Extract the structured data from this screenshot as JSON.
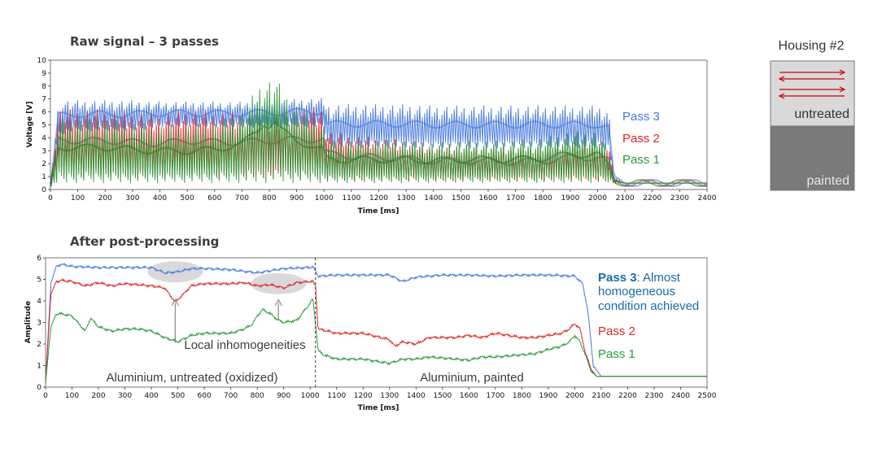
{
  "colors": {
    "pass1": "#2a9a3a",
    "pass2": "#e02525",
    "pass3": "#4477dd",
    "pass1_dark": "#1f7a1f",
    "pass2_dark": "#b0204a",
    "pass3_text": "#1a6aaa",
    "untreated_fill": "#d9d9d9",
    "painted_fill": "#7a7a7a",
    "arrow_color": "#cc0000"
  },
  "housing": {
    "title": "Housing #2",
    "untreated_label": "untreated",
    "painted_label": "painted"
  },
  "chart_data": [
    {
      "type": "line",
      "title": "Raw signal – 3 passes",
      "xlabel": "Time [ms]",
      "ylabel": "Voltage [V]",
      "xlim": [
        0,
        2400
      ],
      "ylim": [
        0,
        10
      ],
      "xticks": [
        0,
        100,
        200,
        300,
        400,
        500,
        600,
        700,
        800,
        900,
        1000,
        1100,
        1200,
        1300,
        1400,
        1500,
        1600,
        1700,
        1800,
        1900,
        2000,
        2100,
        2200,
        2300,
        2400
      ],
      "yticks": [
        0,
        1,
        2,
        3,
        4,
        5,
        6,
        7,
        8,
        9,
        10
      ],
      "legend": [
        "Pass 3",
        "Pass 2",
        "Pass 1"
      ],
      "series": [
        {
          "name": "Pass 3",
          "x": [
            0,
            30,
            100,
            200,
            300,
            400,
            500,
            600,
            700,
            800,
            900,
            1000,
            1010,
            1100,
            1200,
            1300,
            1400,
            1500,
            1600,
            1700,
            1800,
            1900,
            2000,
            2040,
            2060,
            2100,
            2400
          ],
          "env_high": [
            0.2,
            6.9,
            6.9,
            6.9,
            6.9,
            6.8,
            6.8,
            6.8,
            6.8,
            6.9,
            7.0,
            7.1,
            6.6,
            6.6,
            6.6,
            6.6,
            6.5,
            6.5,
            6.5,
            6.5,
            6.5,
            6.5,
            6.5,
            6.3,
            1.0,
            0.5,
            0.5
          ],
          "env_low": [
            0.2,
            4.2,
            4.5,
            4.5,
            4.5,
            4.8,
            4.8,
            4.8,
            4.8,
            4.8,
            4.8,
            4.8,
            3.2,
            3.2,
            3.2,
            3.2,
            3.2,
            3.2,
            3.2,
            3.2,
            3.2,
            3.2,
            3.2,
            3.0,
            0.5,
            0.5,
            0.5
          ]
        },
        {
          "name": "Pass 2",
          "x": [
            0,
            30,
            100,
            200,
            300,
            400,
            500,
            600,
            700,
            800,
            900,
            1000,
            1010,
            1100,
            1200,
            1300,
            1400,
            1500,
            1600,
            1700,
            1800,
            1900,
            2000,
            2040,
            2060,
            2100,
            2400
          ],
          "env_high": [
            0.2,
            6.2,
            6.2,
            6.2,
            6.0,
            5.8,
            6.2,
            6.0,
            6.0,
            6.2,
            6.4,
            6.4,
            4.5,
            4.2,
            4.0,
            3.8,
            3.5,
            3.5,
            3.5,
            3.4,
            3.5,
            4.0,
            4.0,
            3.6,
            0.8,
            0.5,
            0.5
          ],
          "env_low": [
            0.2,
            1.0,
            0.8,
            0.8,
            0.8,
            0.8,
            0.8,
            0.8,
            0.8,
            0.8,
            0.8,
            0.8,
            0.6,
            0.6,
            0.6,
            0.6,
            0.6,
            0.6,
            0.6,
            0.6,
            0.6,
            0.6,
            0.6,
            0.5,
            0.5,
            0.5,
            0.5
          ]
        },
        {
          "name": "Pass 1",
          "x": [
            0,
            30,
            100,
            200,
            300,
            400,
            500,
            600,
            700,
            760,
            780,
            800,
            820,
            840,
            900,
            1000,
            1010,
            1100,
            1200,
            1300,
            1400,
            1500,
            1600,
            1700,
            1800,
            1900,
            2000,
            2040,
            2060,
            2100,
            2400
          ],
          "env_high": [
            0.2,
            5.5,
            5.5,
            5.5,
            5.2,
            5.0,
            5.0,
            5.2,
            6.0,
            8.0,
            9.0,
            8.5,
            9.2,
            8.0,
            6.5,
            5.0,
            3.8,
            3.8,
            3.8,
            3.8,
            3.6,
            3.8,
            3.8,
            3.8,
            4.0,
            4.5,
            4.5,
            3.0,
            0.8,
            0.5,
            0.5
          ],
          "env_low": [
            0.2,
            0.5,
            0.5,
            0.5,
            0.5,
            0.5,
            0.5,
            0.5,
            0.5,
            0.5,
            0.5,
            0.5,
            0.5,
            0.5,
            0.5,
            0.5,
            0.5,
            0.5,
            0.5,
            0.5,
            0.5,
            0.5,
            0.5,
            0.5,
            0.5,
            0.5,
            0.5,
            0.5,
            0.5,
            0.5,
            0.5
          ]
        }
      ]
    },
    {
      "type": "line",
      "title": "After post-processing",
      "xlabel": "Time [ms]",
      "ylabel": "Amplitude",
      "xlim": [
        0,
        2500
      ],
      "ylim": [
        0,
        6
      ],
      "xticks": [
        0,
        100,
        200,
        300,
        400,
        500,
        600,
        700,
        800,
        900,
        1000,
        1100,
        1200,
        1300,
        1400,
        1500,
        1600,
        1700,
        1800,
        1900,
        2000,
        2100,
        2200,
        2300,
        2400,
        2500
      ],
      "yticks": [
        0,
        1,
        2,
        3,
        4,
        5,
        6
      ],
      "divider_x": 1020,
      "series": [
        {
          "name": "Pass 3",
          "x": [
            0,
            20,
            40,
            60,
            100,
            200,
            300,
            400,
            450,
            500,
            550,
            600,
            700,
            800,
            900,
            1000,
            1010,
            1030,
            1100,
            1200,
            1300,
            1350,
            1400,
            1500,
            1600,
            1700,
            1800,
            1900,
            2000,
            2030,
            2050,
            2070,
            2100,
            2500
          ],
          "y": [
            0.2,
            4.8,
            5.6,
            5.7,
            5.6,
            5.55,
            5.55,
            5.55,
            5.3,
            5.35,
            5.5,
            5.5,
            5.45,
            5.3,
            5.5,
            5.55,
            5.6,
            5.15,
            5.2,
            5.2,
            5.2,
            4.9,
            5.1,
            5.2,
            5.2,
            5.15,
            5.2,
            5.2,
            5.15,
            4.8,
            3.5,
            1.0,
            0.5,
            0.5
          ]
        },
        {
          "name": "Pass 2",
          "x": [
            0,
            20,
            40,
            60,
            100,
            150,
            200,
            250,
            300,
            350,
            400,
            450,
            490,
            520,
            550,
            600,
            650,
            700,
            750,
            800,
            850,
            900,
            950,
            1000,
            1010,
            1020,
            1030,
            1100,
            1200,
            1300,
            1320,
            1350,
            1400,
            1450,
            1500,
            1550,
            1600,
            1650,
            1700,
            1750,
            1800,
            1850,
            1900,
            1950,
            1980,
            2000,
            2020,
            2040,
            2060,
            2080,
            2100,
            2500
          ],
          "y": [
            0.2,
            4.3,
            4.9,
            4.95,
            4.9,
            4.7,
            4.85,
            4.7,
            4.8,
            4.75,
            4.7,
            4.6,
            3.95,
            4.3,
            4.7,
            4.8,
            4.8,
            4.8,
            4.85,
            4.7,
            4.75,
            4.6,
            4.85,
            4.9,
            4.9,
            4.7,
            2.7,
            2.5,
            2.5,
            2.2,
            1.9,
            2.1,
            2.0,
            2.3,
            2.3,
            2.3,
            2.4,
            2.3,
            2.5,
            2.4,
            2.3,
            2.3,
            2.4,
            2.5,
            2.7,
            2.95,
            2.7,
            1.6,
            0.9,
            0.5,
            0.5,
            0.5
          ]
        },
        {
          "name": "Pass 1",
          "x": [
            0,
            20,
            40,
            60,
            100,
            150,
            170,
            200,
            250,
            300,
            350,
            400,
            450,
            500,
            550,
            600,
            650,
            700,
            750,
            780,
            800,
            820,
            850,
            880,
            900,
            950,
            1000,
            1010,
            1020,
            1030,
            1050,
            1100,
            1200,
            1250,
            1300,
            1350,
            1400,
            1450,
            1500,
            1550,
            1600,
            1650,
            1700,
            1750,
            1800,
            1850,
            1900,
            1950,
            1980,
            2000,
            2020,
            2040,
            2060,
            2080,
            2100,
            2500
          ],
          "y": [
            0.2,
            2.8,
            3.4,
            3.4,
            3.3,
            2.6,
            3.2,
            2.8,
            2.6,
            2.7,
            2.7,
            2.6,
            2.3,
            2.1,
            2.4,
            2.5,
            2.5,
            2.5,
            2.7,
            2.9,
            3.3,
            3.6,
            3.4,
            3.1,
            3.0,
            3.1,
            3.9,
            4.1,
            3.0,
            1.7,
            1.5,
            1.3,
            1.3,
            1.2,
            1.1,
            1.3,
            1.3,
            1.4,
            1.35,
            1.3,
            1.25,
            1.4,
            1.4,
            1.45,
            1.5,
            1.55,
            1.75,
            1.9,
            2.1,
            2.4,
            2.1,
            1.5,
            0.8,
            0.5,
            0.5,
            0.5
          ]
        }
      ],
      "annotations": {
        "local": "Local inhomogeneities",
        "region_left": "Aluminium, untreated (oxidized)",
        "region_right": "Aluminium, painted",
        "pass3_bold": "Pass 3",
        "pass3_rest": ": Almost",
        "pass3_line2": "homogeneous",
        "pass3_line3": "condition achieved",
        "pass2": "Pass 2",
        "pass1": "Pass 1"
      }
    }
  ]
}
